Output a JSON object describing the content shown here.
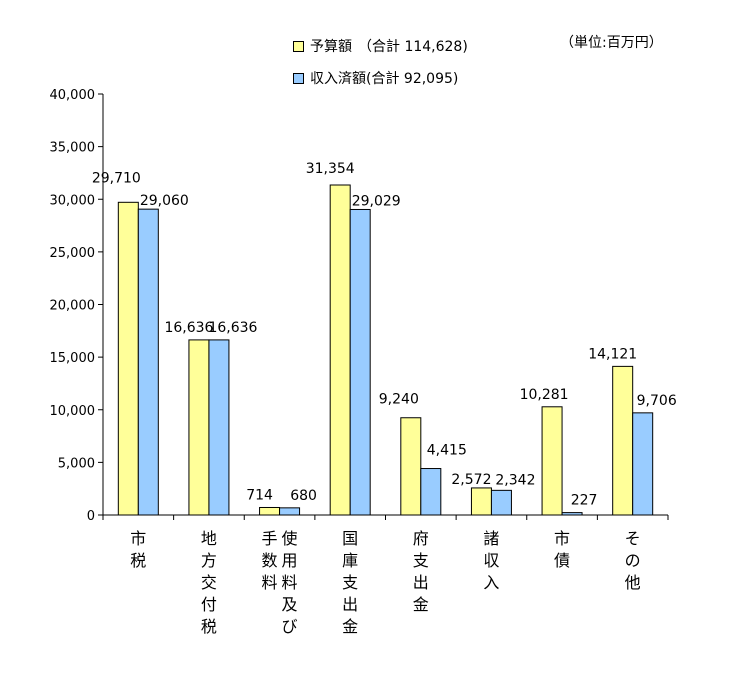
{
  "unit_label": "（単位:百万円）",
  "legend": [
    {
      "name": "予算額",
      "total": "（合計 114,628)",
      "color": "#FFFF99"
    },
    {
      "name": "収入済額",
      "total": "(合計 92,095)",
      "color": "#99CCFF"
    }
  ],
  "chart_data": {
    "type": "bar",
    "categories": [
      [
        "市",
        "税"
      ],
      [
        "地",
        "方",
        "交",
        "付",
        "税"
      ],
      [
        "使",
        "用",
        "料",
        "及",
        "び",
        "手",
        "数",
        "料"
      ],
      [
        "国",
        "庫",
        "支",
        "出",
        "金"
      ],
      [
        "府",
        "支",
        "出",
        "金"
      ],
      [
        "諸",
        "収",
        "入"
      ],
      [
        "市",
        "債"
      ],
      [
        "そ",
        "の",
        "他"
      ]
    ],
    "series": [
      {
        "name": "予算額",
        "values": [
          29710,
          16636,
          714,
          31354,
          9240,
          2572,
          10281,
          14121
        ],
        "labels": [
          "29,710",
          "16,636",
          "714",
          "31,354",
          "9,240",
          "2,572",
          "10,281",
          "14,121"
        ]
      },
      {
        "name": "収入済額",
        "values": [
          29060,
          16636,
          680,
          29029,
          4415,
          2342,
          227,
          9706
        ],
        "labels": [
          "29,060",
          "16,636",
          "680",
          "29,029",
          "4,415",
          "2,342",
          "227",
          "9,706"
        ]
      }
    ],
    "ylim": [
      0,
      40000
    ],
    "yticks": [
      "0",
      "5,000",
      "10,000",
      "15,000",
      "20,000",
      "25,000",
      "30,000",
      "35,000",
      "40,000"
    ],
    "colors": [
      "#FFFF99",
      "#99CCFF"
    ],
    "grid": false,
    "legend_position": "top"
  }
}
